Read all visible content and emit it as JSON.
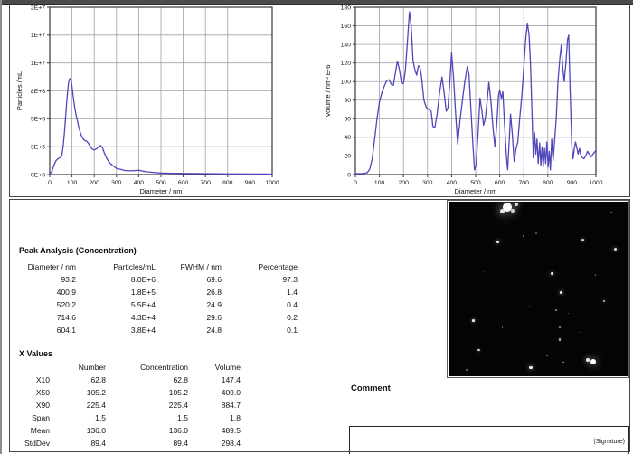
{
  "colors": {
    "curve": "#4f46bb",
    "grid": "#a0a3ad",
    "plot_border": "#35353d",
    "text": "#111111",
    "frame": "#474747"
  },
  "chart_data": [
    {
      "type": "line",
      "name": "concentration-distribution",
      "xlabel": "Diameter / nm",
      "ylabel": "Particles /mL",
      "xlim": [
        0,
        1000
      ],
      "ylim": [
        0,
        15
      ],
      "y_unit": "1E+6 per mL",
      "grid": true,
      "legend": false,
      "x_ticks": [
        0,
        100,
        200,
        300,
        400,
        500,
        600,
        700,
        800,
        900,
        1000
      ],
      "y_ticks": [
        0,
        2.5,
        5,
        7.5,
        10,
        12.5,
        15
      ],
      "y_tick_labels": [
        "0E+0",
        "3E+6",
        "5E+6",
        "8E+6",
        "1E+7",
        "1E+7",
        "2E+7"
      ],
      "x": [
        0,
        10,
        20,
        30,
        40,
        50,
        55,
        60,
        65,
        70,
        75,
        80,
        85,
        90,
        95,
        100,
        105,
        110,
        115,
        120,
        130,
        140,
        150,
        158,
        165,
        172,
        180,
        190,
        200,
        210,
        220,
        228,
        236,
        245,
        255,
        265,
        280,
        300,
        320,
        340,
        360,
        380,
        400,
        420,
        440,
        460,
        480,
        500,
        530,
        560,
        600,
        650,
        700,
        750,
        800,
        850,
        900,
        950,
        1000
      ],
      "y": [
        0.05,
        0.3,
        0.9,
        1.3,
        1.45,
        1.55,
        1.8,
        2.5,
        3.5,
        4.8,
        6.2,
        7.4,
        8.25,
        8.6,
        8.45,
        7.9,
        7.1,
        6.3,
        5.7,
        5.2,
        4.3,
        3.6,
        3.2,
        3.05,
        3.0,
        2.85,
        2.6,
        2.3,
        2.2,
        2.3,
        2.5,
        2.6,
        2.45,
        1.95,
        1.5,
        1.15,
        0.85,
        0.55,
        0.45,
        0.36,
        0.33,
        0.36,
        0.38,
        0.3,
        0.24,
        0.2,
        0.17,
        0.14,
        0.12,
        0.11,
        0.1,
        0.09,
        0.08,
        0.07,
        0.06,
        0.06,
        0.05,
        0.05,
        0.04
      ]
    },
    {
      "type": "line",
      "name": "volume-distribution",
      "xlabel": "Diameter / nm",
      "ylabel": "Volume / nm³ E-6",
      "xlim": [
        0,
        1000
      ],
      "ylim": [
        0,
        180
      ],
      "grid": true,
      "legend": false,
      "x_ticks": [
        0,
        100,
        200,
        300,
        400,
        500,
        600,
        700,
        800,
        900,
        1000
      ],
      "y_ticks": [
        0,
        20,
        40,
        60,
        80,
        100,
        120,
        140,
        160,
        180
      ],
      "y_tick_labels": [
        "0",
        "20",
        "40",
        "60",
        "80",
        "100",
        "120",
        "140",
        "160",
        "180"
      ],
      "x": [
        0,
        30,
        50,
        60,
        70,
        80,
        90,
        100,
        110,
        120,
        130,
        140,
        150,
        158,
        168,
        175,
        183,
        192,
        200,
        208,
        215,
        225,
        232,
        240,
        248,
        255,
        262,
        268,
        275,
        285,
        295,
        305,
        315,
        322,
        330,
        340,
        350,
        360,
        368,
        378,
        385,
        393,
        400,
        408,
        418,
        425,
        435,
        445,
        455,
        465,
        472,
        480,
        488,
        495,
        502,
        510,
        518,
        525,
        533,
        540,
        548,
        555,
        563,
        572,
        580,
        588,
        595,
        600,
        607,
        613,
        620,
        628,
        633,
        640,
        645,
        652,
        660,
        668,
        675,
        683,
        692,
        700,
        708,
        715,
        722,
        728,
        735,
        740,
        745,
        750,
        755,
        760,
        766,
        771,
        776,
        781,
        786,
        791,
        796,
        801,
        806,
        811,
        816,
        822,
        828,
        835,
        842,
        850,
        856,
        862,
        868,
        875,
        882,
        887,
        893,
        900,
        905,
        910,
        915,
        920,
        926,
        932,
        938,
        944,
        950,
        958,
        965,
        972,
        980,
        988,
        1000
      ],
      "y": [
        1,
        1,
        2,
        6,
        17,
        38,
        60,
        78,
        88,
        95,
        101,
        102,
        97,
        96,
        112,
        122,
        113,
        98,
        98,
        112,
        138,
        175,
        160,
        122,
        112,
        107,
        117,
        116,
        105,
        80,
        72,
        70,
        68,
        52,
        50,
        65,
        88,
        105,
        90,
        68,
        72,
        100,
        131,
        105,
        60,
        33,
        58,
        80,
        100,
        116,
        108,
        72,
        35,
        5,
        10,
        45,
        82,
        70,
        53,
        60,
        80,
        99,
        80,
        50,
        30,
        55,
        85,
        91,
        82,
        89,
        55,
        20,
        5,
        38,
        65,
        45,
        14,
        28,
        35,
        60,
        85,
        115,
        145,
        163,
        150,
        120,
        60,
        18,
        45,
        22,
        38,
        12,
        34,
        10,
        30,
        8,
        28,
        12,
        35,
        8,
        25,
        5,
        38,
        15,
        35,
        60,
        100,
        125,
        139,
        115,
        100,
        120,
        145,
        150,
        90,
        30,
        17,
        28,
        35,
        30,
        22,
        28,
        20,
        18,
        17,
        20,
        25,
        22,
        19,
        22,
        26
      ]
    }
  ],
  "peak_analysis": {
    "title": "Peak Analysis (Concentration)",
    "headers": [
      "Diameter / nm",
      "Particles/mL",
      "FWHM / nm",
      "Percentage"
    ],
    "rows": [
      [
        "93.2",
        "8.0E+6",
        "69.6",
        "97.3"
      ],
      [
        "400.9",
        "1.8E+5",
        "26.8",
        "1.4"
      ],
      [
        "520.2",
        "5.5E+4",
        "24.9",
        "0.4"
      ],
      [
        "714.6",
        "4.3E+4",
        "29.6",
        "0.2"
      ],
      [
        "604.1",
        "3.8E+4",
        "24.8",
        "0.1"
      ]
    ]
  },
  "x_values": {
    "title": "X Values",
    "headers": [
      "",
      "Number",
      "Concentration",
      "Volume"
    ],
    "rows": [
      [
        "X10",
        "62.8",
        "62.8",
        "147.4"
      ],
      [
        "X50",
        "105.2",
        "105.2",
        "409.0"
      ],
      [
        "X90",
        "225.4",
        "225.4",
        "884.7"
      ],
      [
        "Span",
        "1.5",
        "1.5",
        "1.8"
      ],
      [
        "Mean",
        "136.0",
        "136.0",
        "489.5"
      ],
      [
        "StdDev",
        "89.4",
        "89.4",
        "298.4"
      ]
    ]
  },
  "comment_label": "Comment",
  "signature_label": "(Signature)",
  "video_frame": {
    "dots": [
      [
        33,
        3,
        5,
        1
      ],
      [
        30,
        5.5,
        2.5,
        0.9
      ],
      [
        36,
        5,
        2,
        0.8
      ],
      [
        38,
        1.5,
        2,
        0.85
      ],
      [
        27.5,
        23,
        1.4,
        0.95
      ],
      [
        42,
        19.5,
        1,
        0.45
      ],
      [
        75,
        22,
        1.2,
        0.8
      ],
      [
        93,
        27,
        1.4,
        0.85
      ],
      [
        49,
        18,
        0.8,
        0.35
      ],
      [
        58,
        41,
        1.4,
        0.9
      ],
      [
        82,
        42,
        0.8,
        0.4
      ],
      [
        63,
        52,
        1.4,
        0.95
      ],
      [
        87,
        57,
        1.2,
        0.8
      ],
      [
        60,
        62,
        0.9,
        0.5
      ],
      [
        67,
        64,
        0.7,
        0.4
      ],
      [
        14,
        68,
        1.3,
        0.9
      ],
      [
        62,
        72,
        0.9,
        0.55
      ],
      [
        30,
        72,
        0.7,
        0.4
      ],
      [
        62,
        79,
        1.1,
        0.7
      ],
      [
        17,
        85,
        1.2,
        0.8
      ],
      [
        81,
        91.5,
        3,
        1
      ],
      [
        78,
        90.5,
        2,
        0.9
      ],
      [
        46,
        95,
        1.8,
        0.95
      ],
      [
        64,
        92,
        0.9,
        0.55
      ],
      [
        10,
        96.5,
        0.8,
        0.4
      ],
      [
        55,
        88,
        0.7,
        0.4
      ],
      [
        91,
        6,
        0.8,
        0.4
      ],
      [
        20,
        40,
        0.6,
        0.3
      ],
      [
        45,
        60,
        0.6,
        0.35
      ],
      [
        73,
        75,
        0.7,
        0.4
      ]
    ]
  }
}
